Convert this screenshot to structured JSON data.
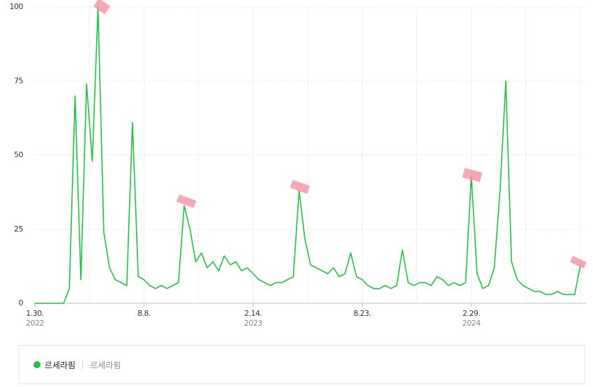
{
  "chart_data": {
    "type": "line",
    "categories": [
      "1.30.",
      null,
      null,
      null,
      null,
      null,
      null,
      null,
      null,
      null,
      null,
      null,
      null,
      null,
      null,
      null,
      null,
      null,
      null,
      "8.8.",
      null,
      null,
      null,
      null,
      null,
      null,
      null,
      null,
      null,
      null,
      null,
      null,
      null,
      null,
      null,
      null,
      null,
      null,
      "2.14.",
      null,
      null,
      null,
      null,
      null,
      null,
      null,
      null,
      null,
      null,
      null,
      null,
      null,
      null,
      null,
      null,
      null,
      null,
      "8.23.",
      null,
      null,
      null,
      null,
      null,
      null,
      null,
      null,
      null,
      null,
      null,
      null,
      null,
      null,
      null,
      null,
      null,
      null,
      "2.29.",
      null,
      null,
      null,
      null,
      null,
      null,
      null,
      null,
      null,
      null,
      null,
      null,
      null,
      null,
      null,
      null,
      null,
      null,
      null
    ],
    "category_years": [
      "2022",
      null,
      null,
      null,
      null,
      null,
      null,
      null,
      null,
      null,
      null,
      null,
      null,
      null,
      null,
      null,
      null,
      null,
      null,
      null,
      null,
      null,
      null,
      null,
      null,
      null,
      null,
      null,
      null,
      null,
      null,
      null,
      null,
      null,
      null,
      null,
      null,
      null,
      "2023",
      null,
      null,
      null,
      null,
      null,
      null,
      null,
      null,
      null,
      null,
      null,
      null,
      null,
      null,
      null,
      null,
      null,
      null,
      null,
      null,
      null,
      null,
      null,
      null,
      null,
      null,
      null,
      null,
      null,
      null,
      null,
      null,
      null,
      null,
      null,
      null,
      null,
      "2024",
      null,
      null,
      null,
      null,
      null,
      null,
      null,
      null,
      null,
      null,
      null,
      null,
      null,
      null,
      null,
      null,
      null,
      null,
      null
    ],
    "series": [
      {
        "name": "르세라핌",
        "keyword": "르세라핌",
        "color": "#19c43f",
        "values": [
          0,
          0,
          0,
          0,
          0,
          0,
          5,
          70,
          8,
          74,
          48,
          100,
          24,
          12,
          8,
          7,
          6,
          61,
          9,
          8,
          6,
          5,
          6,
          5,
          6,
          7,
          33,
          25,
          14,
          17,
          12,
          14,
          11,
          16,
          13,
          14,
          11,
          12,
          10,
          8,
          7,
          6,
          7,
          7,
          8,
          9,
          38,
          22,
          13,
          12,
          11,
          10,
          12,
          9,
          10,
          17,
          9,
          8,
          6,
          5,
          5,
          6,
          5,
          6,
          18,
          7,
          6,
          7,
          7,
          6,
          9,
          8,
          6,
          7,
          6,
          7,
          43,
          10,
          5,
          6,
          12,
          38,
          75,
          14,
          8,
          6,
          5,
          4,
          4,
          3,
          3,
          4,
          3,
          3,
          3,
          13
        ]
      }
    ],
    "ylim": [
      0,
      100
    ],
    "yticks": [
      0,
      25,
      50,
      75,
      100
    ],
    "grid": true
  }
}
